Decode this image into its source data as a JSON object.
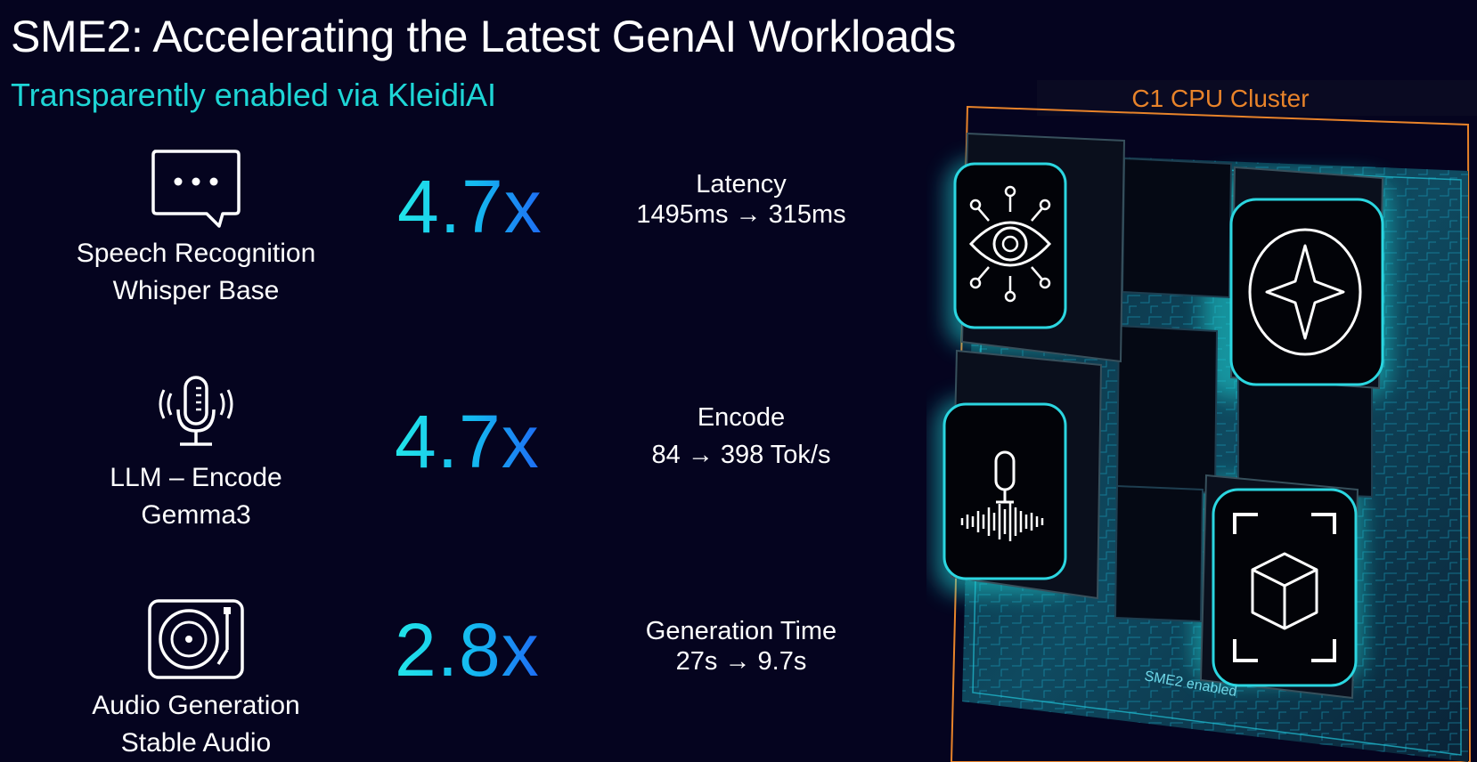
{
  "title": "SME2: Accelerating the Latest GenAI Workloads",
  "subtitle": "Transparently enabled via KleidiAI",
  "workloads": [
    {
      "icon": "chat-bubble-icon",
      "label_line1": "Speech Recognition",
      "label_line2": "Whisper Base",
      "speedup": "4.7x",
      "metric_name": "Latency",
      "metric_value": "1495ms → 315ms"
    },
    {
      "icon": "microphone-icon",
      "label_line1": "LLM – Encode",
      "label_line2": "Gemma3",
      "speedup": "4.7x",
      "metric_name": "Encode",
      "metric_value": "84 → 398 Tok/s"
    },
    {
      "icon": "turntable-icon",
      "label_line1": "Audio Generation",
      "label_line2": "Stable Audio",
      "speedup": "2.8x",
      "metric_name": "Generation Time",
      "metric_value": "27s → 9.7s"
    }
  ],
  "cluster": {
    "label": "C1 CPU Cluster",
    "footer": "SME2 enabled",
    "core_icons": [
      "eye-network-icon",
      "sparkle-star-icon",
      "microphone-waveform-icon",
      "cube-scan-icon"
    ]
  },
  "colors": {
    "background": "#05041f",
    "accent_cyan": "#1ed6d6",
    "accent_blue": "#1e6cf5",
    "cluster_orange": "#e8832a"
  }
}
